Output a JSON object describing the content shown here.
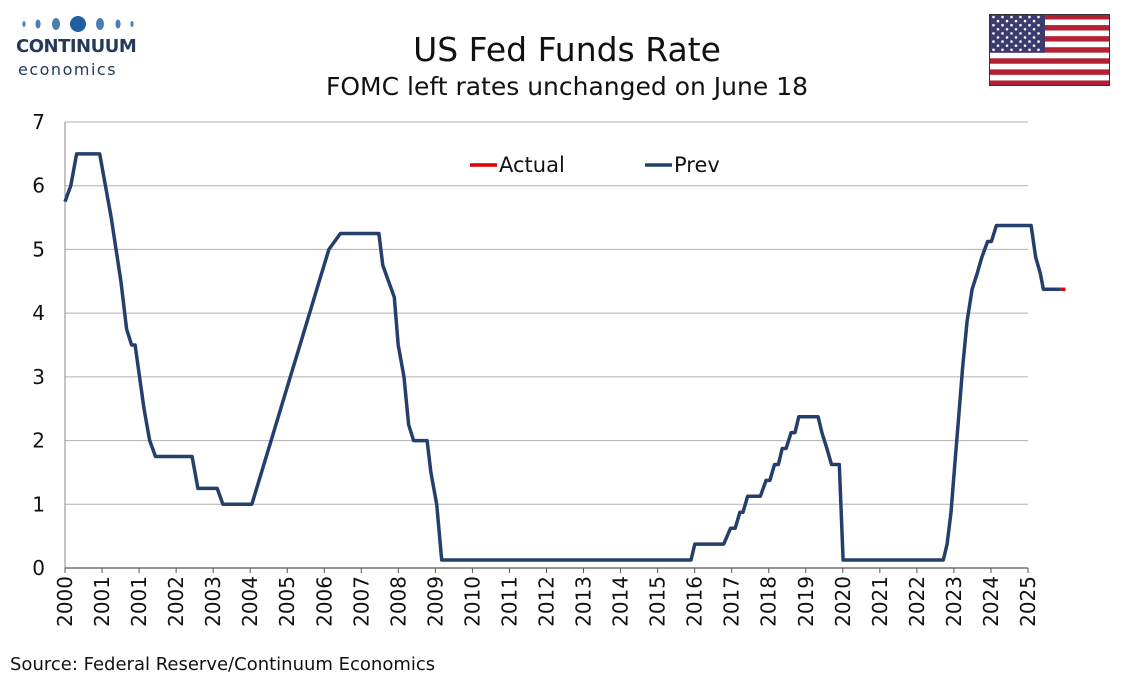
{
  "logo": {
    "brand": "CONTINUUM",
    "sub": "economics"
  },
  "title": "US Fed Funds Rate",
  "subtitle": "FOMC left rates unchanged on June 18",
  "source": "Source: Federal Reserve/Continuum Economics",
  "flag_icon": "us-flag-icon",
  "colors": {
    "prev": "#243f6b",
    "actual": "#e00000",
    "grid": "#b0b0b0"
  },
  "chart_data": {
    "type": "line",
    "title": "US Fed Funds Rate",
    "subtitle": "FOMC left rates unchanged on June 18",
    "ylim": [
      0,
      7
    ],
    "yticks": [
      0,
      1,
      2,
      3,
      4,
      5,
      6,
      7
    ],
    "xlim": [
      2000.0,
      2025.0
    ],
    "xticks": [
      "2000",
      "2001",
      "2001",
      "2002",
      "2003",
      "2004",
      "2005",
      "2006",
      "2007",
      "2008",
      "2009",
      "2010",
      "2011",
      "2012",
      "2013",
      "2014",
      "2015",
      "2016",
      "2017",
      "2018",
      "2019",
      "2020",
      "2021",
      "2022",
      "2023",
      "2024",
      "2025"
    ],
    "legend": {
      "position": "top-center",
      "entries": [
        "Actual",
        "Prev"
      ]
    },
    "grid": true,
    "series": [
      {
        "name": "Prev",
        "color": "#243f6b",
        "points": [
          [
            2000.0,
            5.75
          ],
          [
            2000.15,
            6.0
          ],
          [
            2000.3,
            6.5
          ],
          [
            2000.9,
            6.5
          ],
          [
            2001.2,
            5.5
          ],
          [
            2001.45,
            4.5
          ],
          [
            2001.6,
            3.75
          ],
          [
            2001.73,
            3.5
          ],
          [
            2001.82,
            3.5
          ],
          [
            2002.05,
            2.5
          ],
          [
            2002.2,
            2.0
          ],
          [
            2002.35,
            1.75
          ],
          [
            2003.3,
            1.75
          ],
          [
            2003.45,
            1.25
          ],
          [
            2003.95,
            1.25
          ],
          [
            2004.1,
            1.0
          ],
          [
            2004.85,
            1.0
          ],
          [
            2005.1,
            1.5
          ],
          [
            2005.35,
            2.0
          ],
          [
            2005.6,
            2.5
          ],
          [
            2005.85,
            3.0
          ],
          [
            2006.1,
            3.5
          ],
          [
            2006.35,
            4.0
          ],
          [
            2006.6,
            4.5
          ],
          [
            2006.85,
            5.0
          ],
          [
            2007.15,
            5.25
          ],
          [
            2008.15,
            5.25
          ],
          [
            2008.25,
            4.75
          ],
          [
            2008.55,
            4.25
          ],
          [
            2008.65,
            3.5
          ],
          [
            2008.8,
            3.0
          ],
          [
            2008.92,
            2.25
          ],
          [
            2009.05,
            2.0
          ],
          [
            2009.4,
            2.0
          ],
          [
            2009.5,
            1.5
          ],
          [
            2009.65,
            1.0
          ],
          [
            2009.78,
            0.125
          ],
          [
            2016.25,
            0.125
          ],
          [
            2016.35,
            0.375
          ],
          [
            2017.1,
            0.375
          ],
          [
            2017.28,
            0.625
          ],
          [
            2017.4,
            0.625
          ],
          [
            2017.52,
            0.875
          ],
          [
            2017.6,
            0.875
          ],
          [
            2017.72,
            1.125
          ],
          [
            2018.05,
            1.125
          ],
          [
            2018.2,
            1.375
          ],
          [
            2018.3,
            1.375
          ],
          [
            2018.42,
            1.625
          ],
          [
            2018.52,
            1.625
          ],
          [
            2018.62,
            1.875
          ],
          [
            2018.72,
            1.875
          ],
          [
            2018.85,
            2.125
          ],
          [
            2018.95,
            2.125
          ],
          [
            2019.05,
            2.375
          ],
          [
            2019.55,
            2.375
          ],
          [
            2019.65,
            2.125
          ],
          [
            2019.78,
            1.875
          ],
          [
            2019.9,
            1.625
          ],
          [
            2020.1,
            1.625
          ],
          [
            2020.2,
            0.125
          ],
          [
            2022.8,
            0.125
          ],
          [
            2022.9,
            0.375
          ],
          [
            2023.0,
            0.875
          ],
          [
            2023.1,
            1.625
          ],
          [
            2023.2,
            2.375
          ],
          [
            2023.3,
            3.125
          ],
          [
            2023.42,
            3.875
          ],
          [
            2023.55,
            4.375
          ],
          [
            2023.68,
            4.625
          ],
          [
            2023.8,
            4.875
          ],
          [
            2023.95,
            5.125
          ],
          [
            2024.05,
            5.125
          ],
          [
            2024.18,
            5.375
          ],
          [
            2025.08,
            5.375
          ],
          [
            2025.2,
            4.875
          ],
          [
            2025.32,
            4.625
          ],
          [
            2025.4,
            4.375
          ],
          [
            2025.85,
            4.375
          ]
        ]
      },
      {
        "name": "Actual",
        "color": "#e00000",
        "points": [
          [
            2025.85,
            4.375
          ],
          [
            2025.97,
            4.375
          ]
        ]
      }
    ]
  }
}
